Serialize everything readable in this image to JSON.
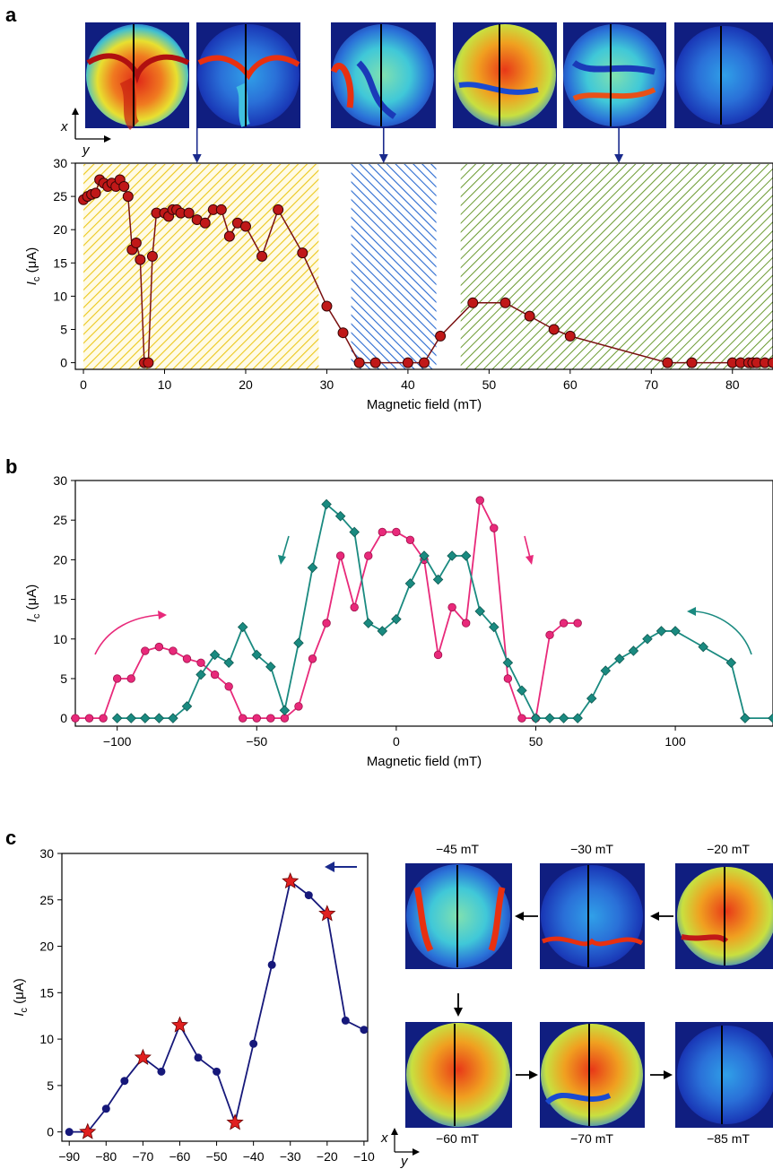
{
  "panel_labels": [
    "a",
    "b",
    "c"
  ],
  "colors": {
    "panel_a_line": "#7a1010",
    "panel_a_marker": "#c01818",
    "sweep_up": "#e8297a",
    "sweep_down": "#1a8a80",
    "panel_c_line": "#16187a",
    "panel_c_star": "#e02020",
    "arrow_blue": "#1a2a8c",
    "hatch_yellow": "#f0d020",
    "hatch_blue": "#2a6ad0",
    "hatch_green": "#6a9a30"
  },
  "image_map_row_a": {
    "note_axes": {
      "x": "x",
      "y": "y"
    }
  },
  "image_map_grid_c": {
    "top_labels": [
      "−45 mT",
      "−30 mT",
      "−20 mT"
    ],
    "bottom_labels": [
      "−60 mT",
      "−70 mT",
      "−85 mT"
    ],
    "axes": {
      "x": "x",
      "y": "y"
    }
  },
  "chart_data": [
    {
      "panel": "a",
      "type": "line",
      "xlabel": "Magnetic field (mT)",
      "ylabel_main": "I",
      "ylabel_sub": "c",
      "ylabel_unit": " (μA)",
      "xlim": [
        -1,
        85
      ],
      "ylim": [
        -1,
        30
      ],
      "xticks": [
        0,
        10,
        20,
        30,
        40,
        50,
        60,
        70,
        80
      ],
      "yticks": [
        0,
        5,
        10,
        15,
        20,
        25,
        30
      ],
      "shaded_regions": [
        {
          "from": 0,
          "to": 29,
          "color": "yellow"
        },
        {
          "from": 33,
          "to": 43.5,
          "color": "blue"
        },
        {
          "from": 46.5,
          "to": 85,
          "color": "green"
        }
      ],
      "image_arrows_at": [
        14,
        37,
        66
      ],
      "x": [
        0,
        0.5,
        1,
        1.5,
        2,
        2.5,
        3,
        3.5,
        4,
        4.5,
        5,
        5.5,
        6,
        6.5,
        7,
        7.5,
        8,
        8.5,
        9,
        10,
        10.5,
        11,
        11.5,
        12,
        13,
        14,
        15,
        16,
        17,
        18,
        19,
        20,
        22,
        24,
        27,
        30,
        32,
        34,
        36,
        40,
        42,
        44,
        48,
        52,
        55,
        58,
        60,
        72,
        75,
        80,
        81,
        82,
        82.5,
        83,
        84,
        85
      ],
      "y": [
        24.5,
        25,
        25.3,
        25.5,
        27.5,
        27,
        26.5,
        27,
        26.5,
        27.5,
        26.5,
        25,
        17,
        18,
        15.5,
        0,
        0,
        16,
        22.5,
        22.5,
        22,
        23,
        23,
        22.5,
        22.5,
        21.5,
        21,
        23,
        23,
        19,
        21,
        20.5,
        16,
        23,
        16.5,
        8.5,
        4.5,
        0,
        0,
        0,
        0,
        4,
        9,
        9,
        7,
        5,
        4,
        0,
        0,
        0,
        0,
        0,
        0,
        0,
        0,
        0
      ]
    },
    {
      "panel": "b",
      "type": "line",
      "xlabel": "Magnetic field (mT)",
      "ylabel_main": "I",
      "ylabel_sub": "c",
      "ylabel_unit": " (μA)",
      "xlim": [
        -115,
        135
      ],
      "ylim": [
        -1,
        30
      ],
      "xticks": [
        -100,
        -50,
        0,
        50,
        100
      ],
      "yticks": [
        0,
        5,
        10,
        15,
        20,
        25,
        30
      ],
      "series": [
        {
          "style": "circle",
          "x": [
            -115,
            -110,
            -105,
            -100,
            -95,
            -90,
            -85,
            -80,
            -75,
            -70,
            -65,
            -60,
            -55,
            -50,
            -45,
            -40,
            -35,
            -30,
            -25,
            -20,
            -15,
            -10,
            -5,
            0,
            5,
            10,
            15,
            20,
            25,
            30,
            35,
            40,
            45,
            50,
            55,
            60,
            65
          ],
          "y": [
            0,
            0,
            0,
            5,
            5,
            8.5,
            9,
            8.5,
            7.5,
            7,
            5.5,
            4,
            0,
            0,
            0,
            0,
            1.5,
            7.5,
            12,
            20.5,
            14,
            20.5,
            23.5,
            23.5,
            22.5,
            20,
            8,
            14,
            12,
            27.5,
            24,
            5,
            0,
            0,
            10.5,
            12,
            12
          ]
        },
        {
          "style": "diamond",
          "x": [
            135,
            125,
            120,
            110,
            100,
            95,
            90,
            85,
            80,
            75,
            70,
            65,
            60,
            55,
            50,
            45,
            40,
            35,
            30,
            25,
            20,
            15,
            10,
            5,
            0,
            -5,
            -10,
            -15,
            -20,
            -25,
            -30,
            -35,
            -40,
            -45,
            -50,
            -55,
            -60,
            -65,
            -70,
            -75,
            -80,
            -85,
            -90,
            -95,
            -100
          ],
          "y": [
            0,
            0,
            7,
            9,
            11,
            11,
            10,
            8.5,
            7.5,
            6,
            2.5,
            0,
            0,
            0,
            0,
            3.5,
            7,
            11.5,
            13.5,
            20.5,
            20.5,
            17.5,
            20.5,
            17,
            12.5,
            11,
            12,
            23.5,
            25.5,
            27,
            19,
            9.5,
            1,
            6.5,
            8,
            11.5,
            7,
            8,
            5.5,
            1.5,
            0,
            0,
            0,
            0,
            0
          ]
        }
      ]
    },
    {
      "panel": "c",
      "type": "line",
      "xlabel": "Magnetic field (mT)",
      "ylabel_main": "I",
      "ylabel_sub": "c",
      "ylabel_unit": " (μA)",
      "xlim": [
        -92,
        -9
      ],
      "ylim": [
        -1,
        30
      ],
      "xticks": [
        -90,
        -80,
        -70,
        -60,
        -50,
        -40,
        -30,
        -20,
        -10
      ],
      "xtick_labels": [
        "−90",
        "−80",
        "−70",
        "−60",
        "−50",
        "−40",
        "−30",
        "−20",
        "−10"
      ],
      "yticks": [
        0,
        5,
        10,
        15,
        20,
        25,
        30
      ],
      "x": [
        -90,
        -85,
        -80,
        -75,
        -70,
        -65,
        -60,
        -55,
        -50,
        -45,
        -40,
        -35,
        -30,
        -25,
        -20,
        -15,
        -10
      ],
      "y": [
        0,
        0,
        2.5,
        5.5,
        8,
        6.5,
        11.5,
        8,
        6.5,
        1,
        9.5,
        18,
        27,
        25.5,
        23.5,
        12,
        11
      ],
      "starred_x": [
        -85,
        -70,
        -60,
        -45,
        -30,
        -20
      ]
    }
  ]
}
